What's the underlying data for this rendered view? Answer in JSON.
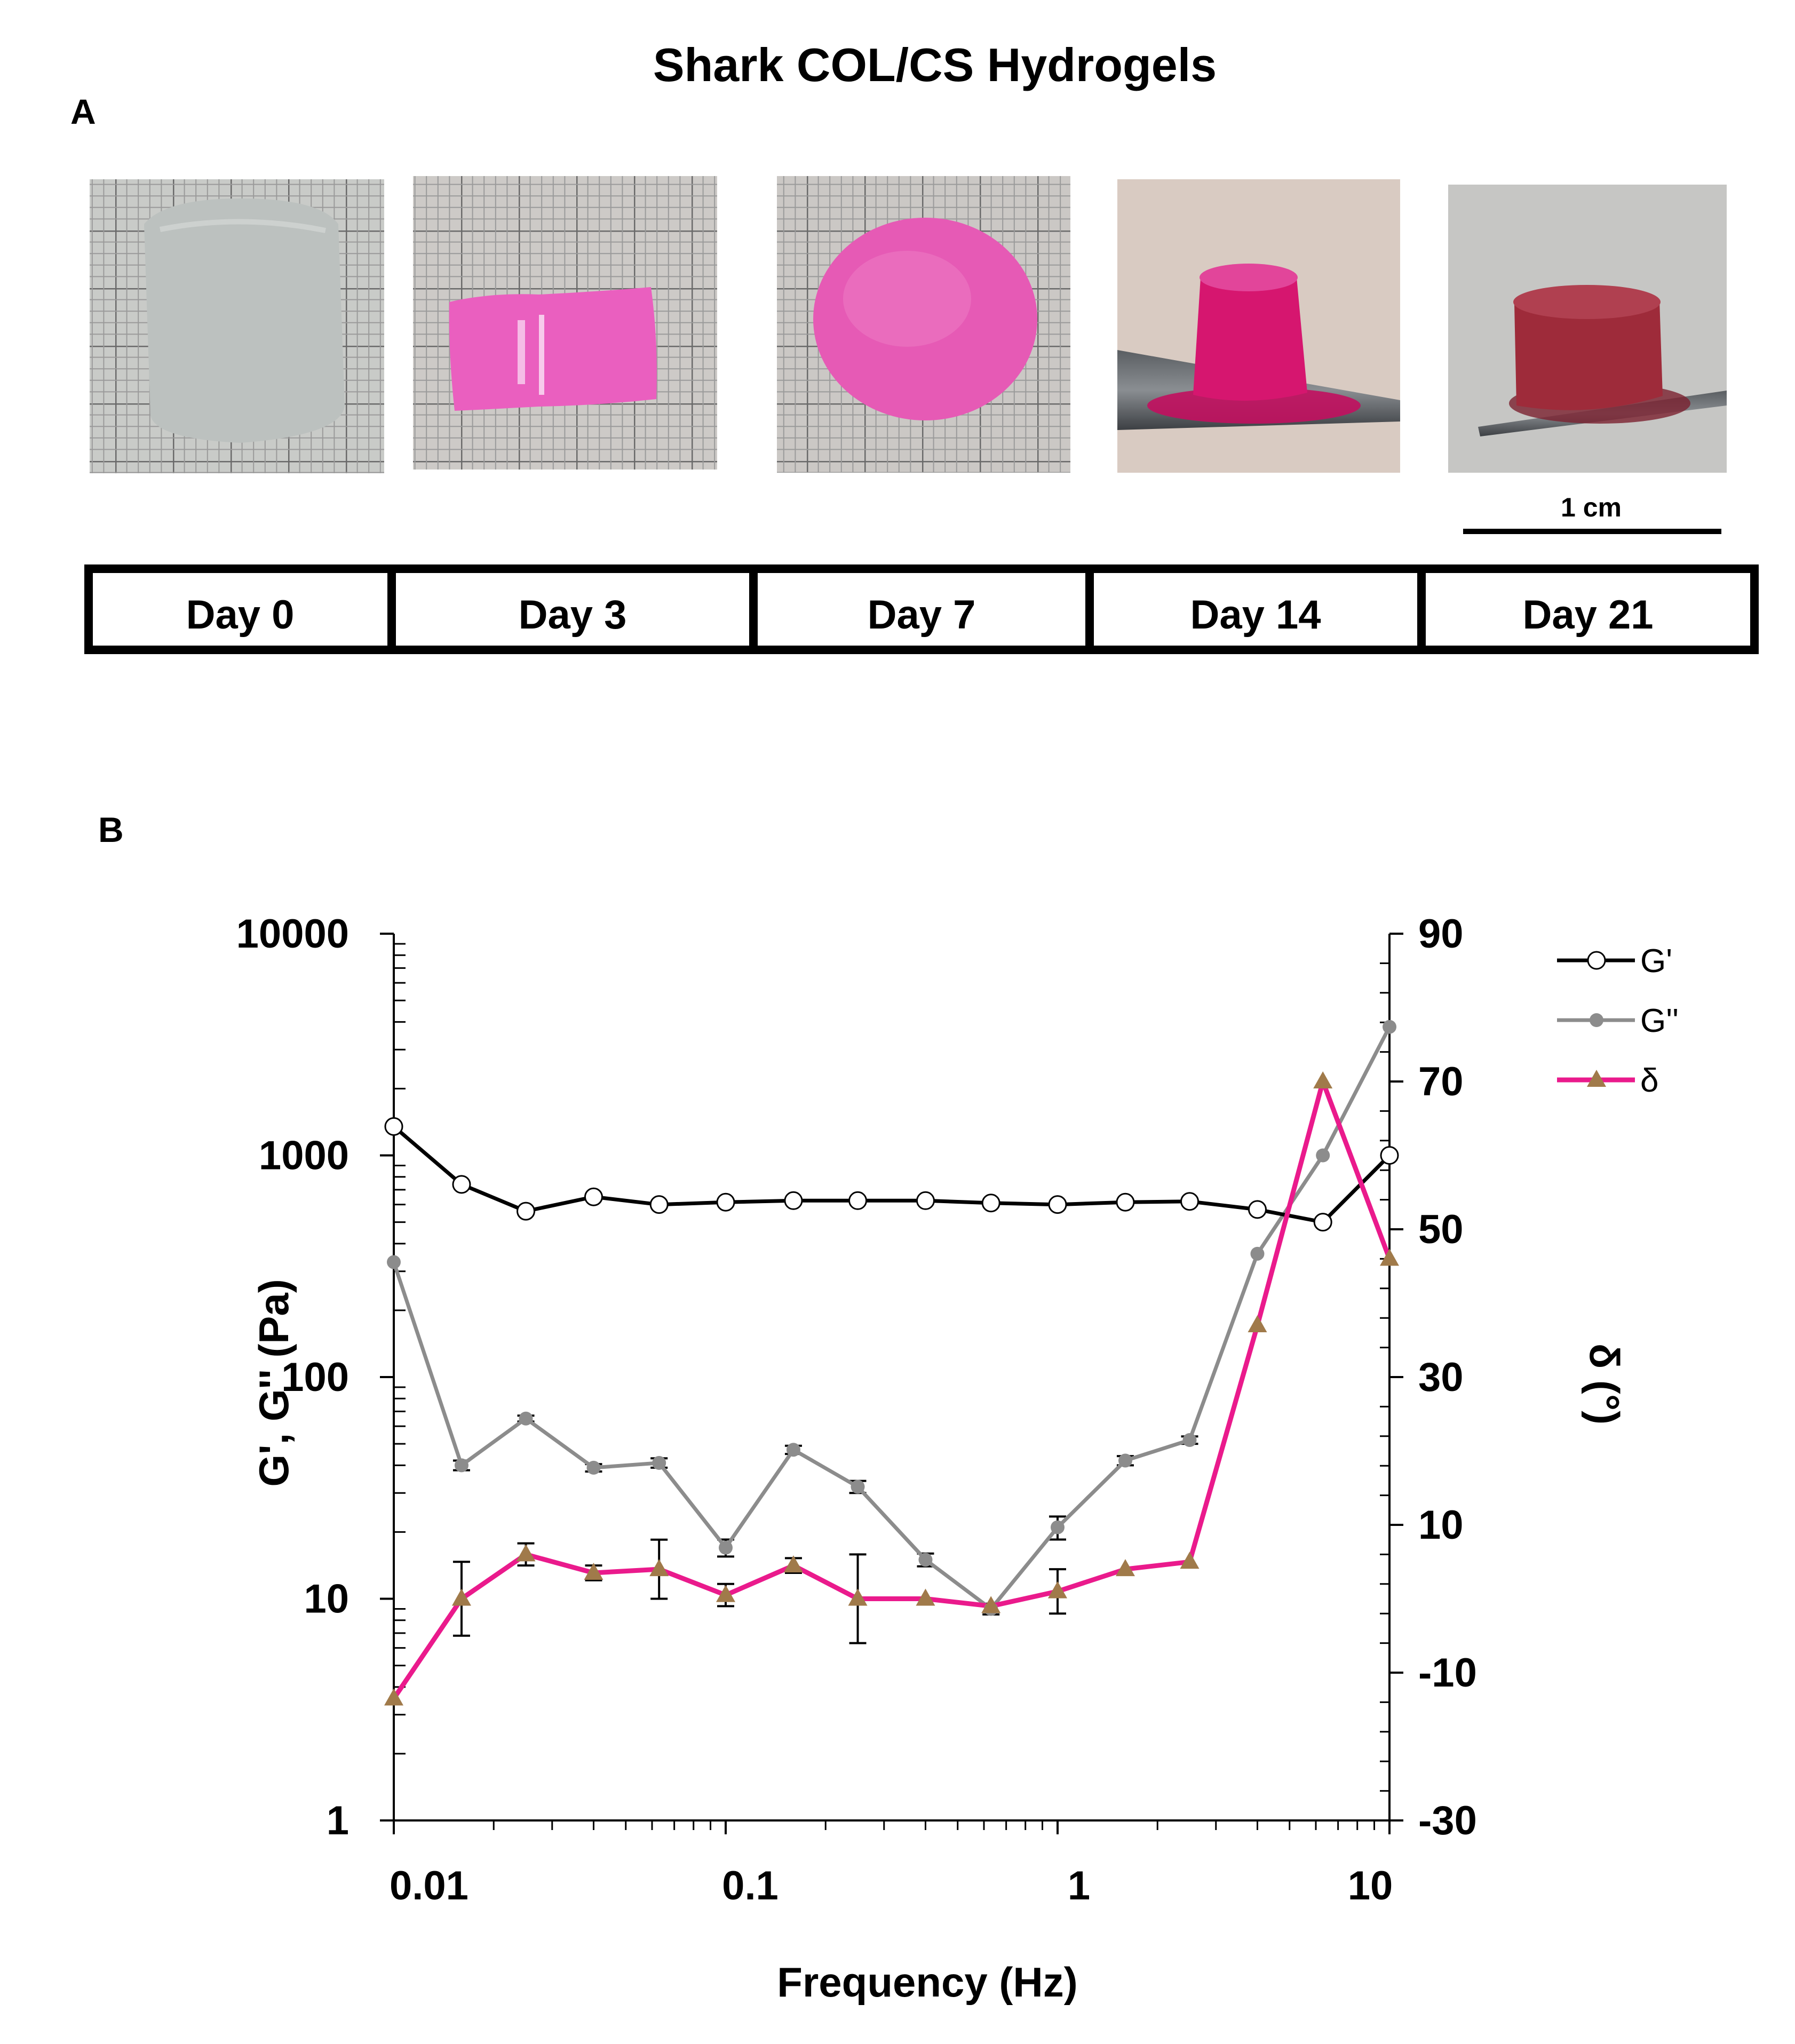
{
  "figure": {
    "title": "Shark COL/CS Hydrogels",
    "panel_a_label": "A",
    "panel_b_label": "B",
    "scale_bar_label": "1 cm"
  },
  "panel_a": {
    "photos": [
      {
        "day_label": "Day 0",
        "description_icon": "white-hydrogel-disc-on-grid-photo",
        "gel_color": "#bcc1bf",
        "background": "#c9cbc8"
      },
      {
        "day_label": "Day 3",
        "description_icon": "pink-hydrogel-sheet-on-grid-photo",
        "gel_color": "#ea5fbf",
        "background": "#cdcac7"
      },
      {
        "day_label": "Day 7",
        "description_icon": "pink-hydrogel-disc-on-grid-photo",
        "gel_color": "#e65ab5",
        "background": "#cbc8c5"
      },
      {
        "day_label": "Day 14",
        "description_icon": "magenta-hydrogel-cylinder-on-spatula-photo",
        "gel_color": "#d6166f",
        "background": "#d9cbc2"
      },
      {
        "day_label": "Day 21",
        "description_icon": "red-hydrogel-cylinder-on-spatula-photo",
        "gel_color": "#9e2b3a",
        "background": "#c6c6c4"
      }
    ]
  },
  "chart_data": {
    "type": "line",
    "xscale": "log",
    "yscale_left": "log",
    "x": [
      0.01,
      0.016,
      0.025,
      0.04,
      0.063,
      0.1,
      0.16,
      0.25,
      0.4,
      0.63,
      1.0,
      1.6,
      2.5,
      4.0,
      6.3,
      10.0
    ],
    "series": [
      {
        "name": "G'",
        "axis": "left",
        "color": "#000000",
        "marker": "open-circle",
        "values": [
          1350,
          740,
          560,
          650,
          600,
          615,
          625,
          625,
          625,
          610,
          600,
          615,
          620,
          570,
          500,
          1000
        ]
      },
      {
        "name": "G''",
        "axis": "left",
        "color": "#8c8c8c",
        "marker": "filled-circle",
        "values": [
          330,
          40,
          65,
          39,
          41,
          17,
          47,
          32,
          15,
          9,
          21,
          42,
          52,
          360,
          1000,
          3800
        ],
        "error": [
          0,
          2,
          2,
          1.5,
          2,
          1.5,
          2,
          2,
          1,
          0.5,
          2.5,
          2,
          2,
          0,
          0,
          0
        ]
      },
      {
        "name": "δ",
        "axis": "right",
        "color": "#ea1a8c",
        "marker": "triangle",
        "marker_color": "#a07a4a",
        "values": [
          -13.5,
          0,
          6,
          3.5,
          4,
          0.5,
          4.5,
          0,
          0,
          -1,
          1,
          4,
          5,
          37,
          70,
          46
        ],
        "error": [
          0,
          5,
          1.5,
          1,
          4,
          1.5,
          1,
          6,
          0,
          0,
          3,
          0,
          0,
          0,
          0,
          0
        ]
      }
    ],
    "xlabel": "Frequency (Hz)",
    "ylabel_left": "G', G'' (Pa)",
    "ylabel_right": "δ (°)",
    "xlim": [
      0.01,
      10
    ],
    "ylim_left": [
      1,
      10000
    ],
    "ylim_right": [
      -30,
      90
    ],
    "x_tick_labels": [
      "0.01",
      "0.1",
      "1",
      "10"
    ],
    "y_left_tick_labels": [
      "10000",
      "1000",
      "100",
      "10",
      "1"
    ],
    "y_right_tick_labels": [
      "90",
      "70",
      "50",
      "30",
      "10",
      "-10",
      "-30"
    ],
    "legend_position": "top-right",
    "grid": false
  }
}
